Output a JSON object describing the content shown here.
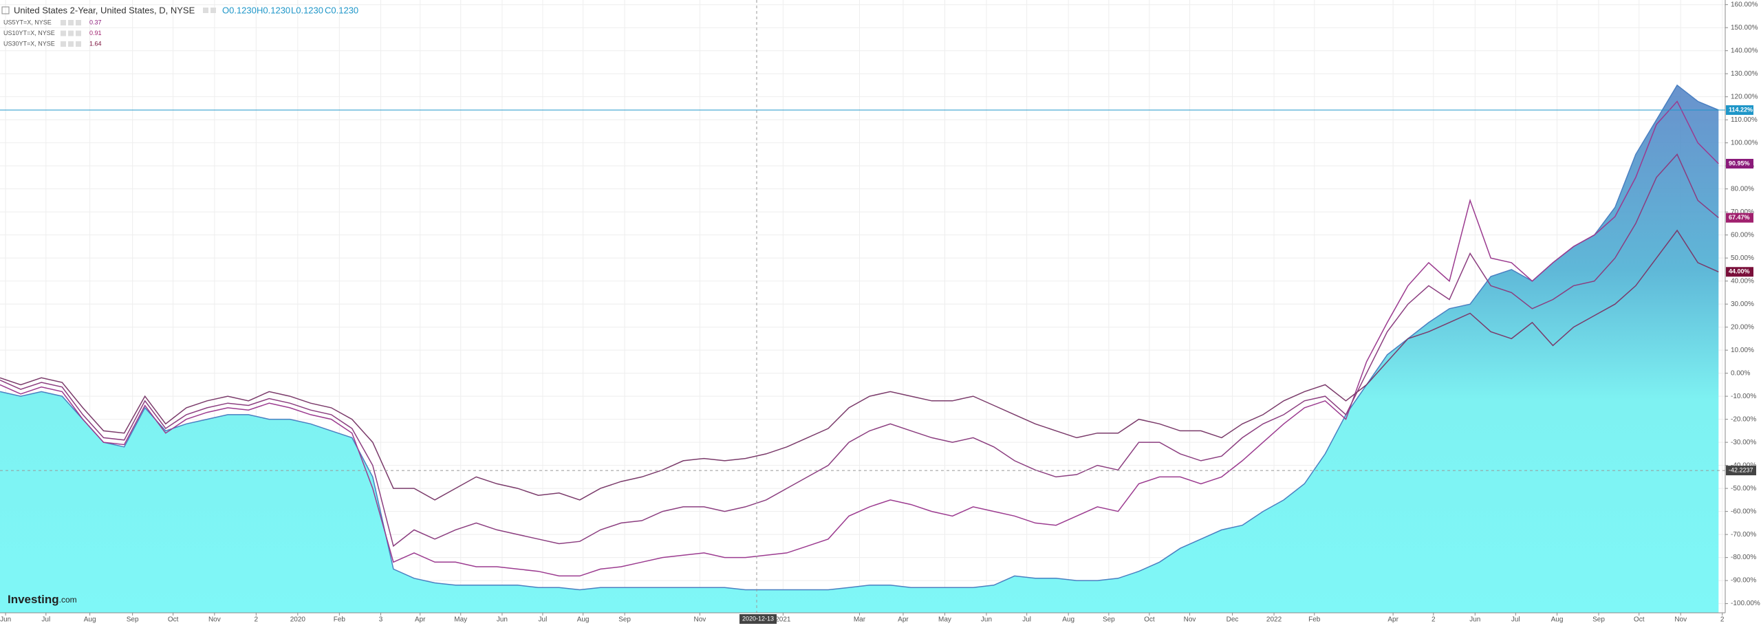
{
  "chart_data": {
    "type": "line",
    "title": "United States 2-Year, United States, D, NYSE",
    "ohlc": [
      "O0.1230",
      "H0.1230",
      "L0.1230",
      "C0.1230"
    ],
    "logo": [
      "Investing",
      ".com"
    ],
    "grid": true,
    "ylim": [
      -104,
      162
    ],
    "yticks": [
      {
        "value": 160,
        "label": "160.00%"
      },
      {
        "value": 150,
        "label": "150.00%"
      },
      {
        "value": 140,
        "label": "140.00%"
      },
      {
        "value": 130,
        "label": "130.00%"
      },
      {
        "value": 120,
        "label": "120.00%"
      },
      {
        "value": 110,
        "label": "110.00%"
      },
      {
        "value": 100,
        "label": "100.00%"
      },
      {
        "value": 90,
        "label": "90.00%"
      },
      {
        "value": 80,
        "label": "80.00%"
      },
      {
        "value": 70,
        "label": "70.00%"
      },
      {
        "value": 60,
        "label": "60.00%"
      },
      {
        "value": 50,
        "label": "50.00%"
      },
      {
        "value": 40,
        "label": "40.00%"
      },
      {
        "value": 30,
        "label": "30.00%"
      },
      {
        "value": 20,
        "label": "20.00%"
      },
      {
        "value": 10,
        "label": "10.00%"
      },
      {
        "value": 0,
        "label": "0.00%"
      },
      {
        "value": -10,
        "label": "-10.00%"
      },
      {
        "value": -20,
        "label": "-20.00%"
      },
      {
        "value": -30,
        "label": "-30.00%"
      },
      {
        "value": -40,
        "label": "-40.00%"
      },
      {
        "value": -50,
        "label": "-50.00%"
      },
      {
        "value": -60,
        "label": "-60.00%"
      },
      {
        "value": -70,
        "label": "-70.00%"
      },
      {
        "value": -80,
        "label": "-80.00%"
      },
      {
        "value": -90,
        "label": "-90.00%"
      },
      {
        "value": -100,
        "label": "-100.00%"
      }
    ],
    "xticks": [
      {
        "value": 0.27,
        "label": "Jun"
      },
      {
        "value": 2.22,
        "label": "Jul"
      },
      {
        "value": 4.34,
        "label": "Aug"
      },
      {
        "value": 6.4,
        "label": "Sep"
      },
      {
        "value": 8.36,
        "label": "Oct"
      },
      {
        "value": 10.36,
        "label": "Nov"
      },
      {
        "value": 12.37,
        "label": "2"
      },
      {
        "value": 14.38,
        "label": "2020"
      },
      {
        "value": 16.39,
        "label": "Feb"
      },
      {
        "value": 18.39,
        "label": "3"
      },
      {
        "value": 20.29,
        "label": "Apr"
      },
      {
        "value": 22.25,
        "label": "May"
      },
      {
        "value": 24.25,
        "label": "Jun"
      },
      {
        "value": 26.21,
        "label": "Jul"
      },
      {
        "value": 28.16,
        "label": "Aug"
      },
      {
        "value": 30.17,
        "label": "Sep"
      },
      {
        "value": 33.8,
        "label": "Nov"
      },
      {
        "value": 37.82,
        "label": "2021"
      },
      {
        "value": 41.51,
        "label": "Mar"
      },
      {
        "value": 43.62,
        "label": "Apr"
      },
      {
        "value": 45.63,
        "label": "May"
      },
      {
        "value": 47.64,
        "label": "Jun"
      },
      {
        "value": 49.59,
        "label": "Jul"
      },
      {
        "value": 51.6,
        "label": "Aug"
      },
      {
        "value": 53.55,
        "label": "Sep"
      },
      {
        "value": 55.51,
        "label": "Oct"
      },
      {
        "value": 57.46,
        "label": "Nov"
      },
      {
        "value": 59.52,
        "label": "Dec"
      },
      {
        "value": 61.53,
        "label": "2022"
      },
      {
        "value": 63.48,
        "label": "Feb"
      },
      {
        "value": 67.28,
        "label": "Apr"
      },
      {
        "value": 69.23,
        "label": "2"
      },
      {
        "value": 71.24,
        "label": "Jun"
      },
      {
        "value": 73.2,
        "label": "Jul"
      },
      {
        "value": 75.2,
        "label": "Aug"
      },
      {
        "value": 77.21,
        "label": "Sep"
      },
      {
        "value": 79.16,
        "label": "Oct"
      },
      {
        "value": 81.17,
        "label": "Nov"
      },
      {
        "value": 83.18,
        "label": "2"
      }
    ],
    "crosshair": {
      "date": "2020-12-13",
      "value": -42.2237
    },
    "series": [
      {
        "style": "area",
        "color": "#4a7fc1",
        "end_label": "114.22%",
        "end_color": "#1e96c8",
        "values": [
          -8,
          -10,
          -8,
          -10,
          -20,
          -30,
          -32,
          -15,
          -25,
          -22,
          -20,
          -18,
          -18,
          -20,
          -20,
          -22,
          -25,
          -28,
          -45,
          -85,
          -89,
          -91,
          -92,
          -92,
          -92,
          -92,
          -93,
          -93,
          -94,
          -93,
          -93,
          -93,
          -93,
          -93,
          -93,
          -93,
          -94,
          -94,
          -94,
          -94,
          -94,
          -93,
          -92,
          -92,
          -93,
          -93,
          -93,
          -93,
          -92,
          -88,
          -89,
          -89,
          -90,
          -90,
          -89,
          -86,
          -82,
          -76,
          -72,
          -68,
          -66,
          -60,
          -55,
          -48,
          -35,
          -18,
          -5,
          8,
          15,
          22,
          28,
          30,
          42,
          45,
          40,
          48,
          55,
          60,
          72,
          95,
          110,
          125,
          118,
          114.22
        ]
      },
      {
        "name": "US5YT=X, NYSE",
        "legend_value": 0.37,
        "color": "#9b3a8f",
        "end_label": "90.95%",
        "end_color": "#8b1a7a",
        "values": [
          -5,
          -9,
          -6,
          -8,
          -20,
          -30,
          -31,
          -14,
          -26,
          -20,
          -17,
          -15,
          -16,
          -13,
          -15,
          -18,
          -20,
          -26,
          -50,
          -82,
          -78,
          -82,
          -82,
          -84,
          -84,
          -85,
          -86,
          -88,
          -88,
          -85,
          -84,
          -82,
          -80,
          -79,
          -78,
          -80,
          -80,
          -79,
          -78,
          -75,
          -72,
          -62,
          -58,
          -55,
          -57,
          -60,
          -62,
          -58,
          -60,
          -62,
          -65,
          -66,
          -62,
          -58,
          -60,
          -48,
          -45,
          -45,
          -48,
          -45,
          -38,
          -30,
          -22,
          -15,
          -12,
          -20,
          5,
          22,
          38,
          48,
          40,
          75,
          50,
          48,
          40,
          48,
          55,
          60,
          68,
          85,
          108,
          118,
          100,
          90.95
        ]
      },
      {
        "name": "US10YT=X, NYSE",
        "legend_value": 0.91,
        "color": "#8b3d7f",
        "end_label": "67.47%",
        "end_color": "#a0206e",
        "values": [
          -3,
          -7,
          -4,
          -6,
          -18,
          -28,
          -29,
          -12,
          -24,
          -18,
          -15,
          -13,
          -14,
          -11,
          -13,
          -16,
          -18,
          -24,
          -40,
          -75,
          -68,
          -72,
          -68,
          -65,
          -68,
          -70,
          -72,
          -74,
          -73,
          -68,
          -65,
          -64,
          -60,
          -58,
          -58,
          -60,
          -58,
          -55,
          -50,
          -45,
          -40,
          -30,
          -25,
          -22,
          -25,
          -28,
          -30,
          -28,
          -32,
          -38,
          -42,
          -45,
          -44,
          -40,
          -42,
          -30,
          -30,
          -35,
          -38,
          -36,
          -28,
          -22,
          -18,
          -12,
          -10,
          -18,
          0,
          18,
          30,
          38,
          32,
          52,
          38,
          35,
          28,
          32,
          38,
          40,
          50,
          65,
          85,
          95,
          75,
          67.47
        ]
      },
      {
        "name": "US30YT=X, NYSE",
        "legend_value": 1.64,
        "color": "#7a3a6a",
        "end_label": "44.00%",
        "end_color": "#7a0f3a",
        "values": [
          -2,
          -5,
          -2,
          -4,
          -15,
          -25,
          -26,
          -10,
          -22,
          -15,
          -12,
          -10,
          -12,
          -8,
          -10,
          -13,
          -15,
          -20,
          -30,
          -50,
          -50,
          -55,
          -50,
          -45,
          -48,
          -50,
          -53,
          -52,
          -55,
          -50,
          -47,
          -45,
          -42,
          -38,
          -37,
          -38,
          -37,
          -35,
          -32,
          -28,
          -24,
          -15,
          -10,
          -8,
          -10,
          -12,
          -12,
          -10,
          -14,
          -18,
          -22,
          -25,
          -28,
          -26,
          -26,
          -20,
          -22,
          -25,
          -25,
          -28,
          -22,
          -18,
          -12,
          -8,
          -5,
          -12,
          -5,
          5,
          15,
          18,
          22,
          26,
          18,
          15,
          22,
          12,
          20,
          25,
          30,
          38,
          50,
          62,
          48,
          44
        ]
      }
    ]
  }
}
